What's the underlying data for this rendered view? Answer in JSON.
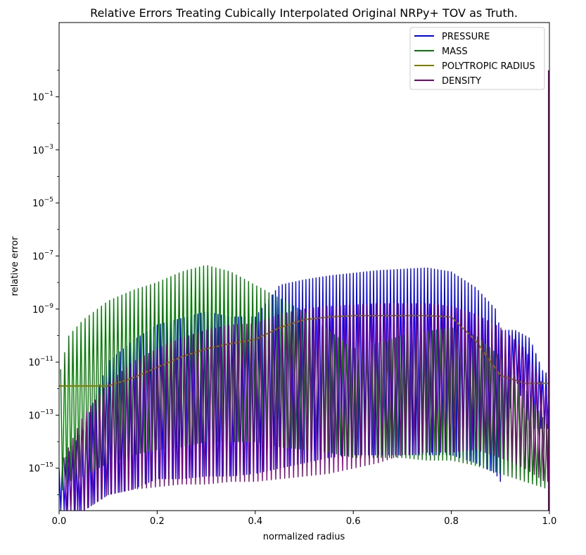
{
  "chart_data": {
    "type": "line",
    "title": "Relative Errors Treating Cubically Interpolated Original NRPy+ TOV as Truth.",
    "xlabel": "normalized radius",
    "ylabel": "relative error",
    "xlim": [
      0.0,
      1.0
    ],
    "ylim_log10": [
      -16.6,
      1.8
    ],
    "yscale": "log",
    "grid": false,
    "legend_position": "upper right",
    "x_ticks": [
      "0.0",
      "0.2",
      "0.4",
      "0.6",
      "0.8",
      "1.0"
    ],
    "x_tick_values": [
      0.0,
      0.2,
      0.4,
      0.6,
      0.8,
      1.0
    ],
    "y_ticks": [
      {
        "base": "10",
        "exp": "−1",
        "log10": -1
      },
      {
        "base": "10",
        "exp": "−3",
        "log10": -3
      },
      {
        "base": "10",
        "exp": "−5",
        "log10": -5
      },
      {
        "base": "10",
        "exp": "−7",
        "log10": -7
      },
      {
        "base": "10",
        "exp": "−9",
        "log10": -9
      },
      {
        "base": "10",
        "exp": "−11",
        "log10": -11
      },
      {
        "base": "10",
        "exp": "−13",
        "log10": -13
      },
      {
        "base": "10",
        "exp": "−15",
        "log10": -15
      }
    ],
    "series": [
      {
        "name": "PRESSURE",
        "color": "#0000ff",
        "oscillating": true,
        "envelope_x": [
          0.0,
          0.05,
          0.1,
          0.15,
          0.2,
          0.25,
          0.3,
          0.35,
          0.4,
          0.45,
          0.5,
          0.55,
          0.6,
          0.65,
          0.7,
          0.75,
          0.8,
          0.85,
          0.89,
          0.9,
          0.93,
          0.96,
          0.99,
          1.0
        ],
        "envelope_log10": [
          -15.0,
          -13.5,
          -11.0,
          -10.2,
          -9.6,
          -9.35,
          -9.1,
          -9.3,
          -9.3,
          -8.1,
          -7.9,
          -7.75,
          -7.65,
          -7.55,
          -7.5,
          -7.45,
          -7.6,
          -8.2,
          -9.0,
          -9.8,
          -9.8,
          -10.1,
          -11.5,
          -11.2
        ],
        "floor_log10": [
          -16.6,
          -16.6,
          -16.0,
          -15.8,
          -15.4,
          -15.4,
          -15.3,
          -15.3,
          -15.2,
          -15.0,
          -14.8,
          -14.6,
          -14.5,
          -14.5,
          -14.5,
          -14.5,
          -14.5,
          -14.8,
          -15.2,
          -15.5,
          -11.5,
          -13.5,
          -13.5,
          -13.5
        ],
        "cycles": 145
      },
      {
        "name": "MASS",
        "color": "#008000",
        "oscillating": true,
        "envelope_x": [
          0.0,
          0.02,
          0.05,
          0.1,
          0.15,
          0.2,
          0.25,
          0.3,
          0.35,
          0.4,
          0.45,
          0.5,
          0.55,
          0.6,
          0.65,
          0.7,
          0.75,
          0.8,
          0.85,
          0.9,
          0.95,
          1.0
        ],
        "envelope_log10": [
          -11.5,
          -10.0,
          -9.4,
          -8.7,
          -8.3,
          -8.0,
          -7.6,
          -7.35,
          -7.6,
          -8.1,
          -8.6,
          -9.1,
          -9.8,
          -10.5,
          -10.3,
          -10.0,
          -9.85,
          -9.7,
          -10.0,
          -10.8,
          -12.0,
          -13.5
        ],
        "floor_log10": [
          -16.0,
          -15.5,
          -15.3,
          -14.8,
          -14.5,
          -14.3,
          -14.2,
          -14.0,
          -14.0,
          -14.0,
          -14.2,
          -14.3,
          -14.4,
          -14.6,
          -14.6,
          -14.6,
          -14.7,
          -14.7,
          -14.9,
          -15.2,
          -15.5,
          -15.8
        ],
        "cycles": 120
      },
      {
        "name": "POLYTROPIC RADIUS",
        "color": "#808000",
        "oscillating": false,
        "envelope_x": [
          0.0,
          0.1,
          0.15,
          0.2,
          0.25,
          0.3,
          0.35,
          0.4,
          0.45,
          0.5,
          0.55,
          0.6,
          0.65,
          0.7,
          0.75,
          0.8,
          0.85,
          0.9,
          0.95,
          1.0
        ],
        "envelope_log10": [
          -11.9,
          -11.9,
          -11.6,
          -11.2,
          -10.8,
          -10.5,
          -10.3,
          -10.15,
          -9.7,
          -9.4,
          -9.3,
          -9.25,
          -9.25,
          -9.25,
          -9.25,
          -9.3,
          -10.2,
          -11.5,
          -11.8,
          -11.8
        ],
        "floor_log10": [
          -11.9,
          -11.9,
          -11.6,
          -11.2,
          -10.8,
          -10.5,
          -10.3,
          -10.15,
          -9.7,
          -9.4,
          -9.3,
          -9.25,
          -9.25,
          -9.25,
          -9.25,
          -9.3,
          -10.2,
          -11.5,
          -11.8,
          -11.8
        ],
        "cycles": 0
      },
      {
        "name": "DENSITY",
        "color": "#800080",
        "oscillating": true,
        "envelope_x": [
          0.0,
          0.05,
          0.1,
          0.15,
          0.2,
          0.25,
          0.3,
          0.35,
          0.4,
          0.45,
          0.5,
          0.55,
          0.6,
          0.65,
          0.7,
          0.75,
          0.8,
          0.85,
          0.9,
          0.95,
          0.99,
          1.0
        ],
        "envelope_log10": [
          -15.0,
          -13.0,
          -11.8,
          -11.0,
          -10.5,
          -10.1,
          -9.8,
          -9.6,
          -9.55,
          -9.2,
          -9.0,
          -8.9,
          -8.85,
          -8.8,
          -8.8,
          -8.8,
          -8.9,
          -9.2,
          -9.7,
          -10.5,
          -12.0,
          -12.0
        ],
        "floor_log10": [
          -16.6,
          -16.6,
          -16.0,
          -15.8,
          -15.7,
          -15.6,
          -15.6,
          -15.5,
          -15.5,
          -15.4,
          -15.3,
          -15.2,
          -15.0,
          -14.8,
          -14.5,
          -14.4,
          -14.4,
          -14.3,
          -14.6,
          -15.0,
          -15.5,
          -15.5
        ],
        "cycles": 110
      }
    ],
    "spike": {
      "x": 1.0,
      "top_log10": 0.0,
      "color": "#800080"
    }
  }
}
